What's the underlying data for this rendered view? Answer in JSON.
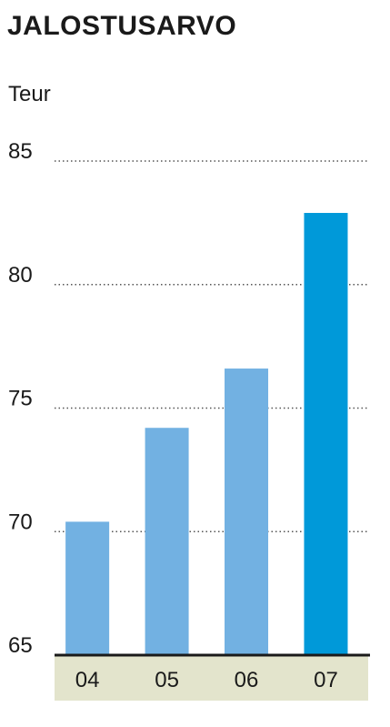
{
  "chart_data": {
    "type": "bar",
    "title": "JALOSTUSARVO",
    "ylabel": "Teur",
    "xlabel": "",
    "categories": [
      "04",
      "05",
      "06",
      "07"
    ],
    "values": [
      70.4,
      74.2,
      76.6,
      82.9
    ],
    "ylim": [
      65,
      85
    ],
    "yticks": [
      "65",
      "70",
      "75",
      "80",
      "85"
    ],
    "grid": true,
    "colors": {
      "bar": "#72b1e2",
      "highlight_bar": "#0099d9",
      "axis_band": "#e3e4cc",
      "grid": "#555555",
      "baseline": "#1a1a1a"
    },
    "highlight_index": 3
  }
}
